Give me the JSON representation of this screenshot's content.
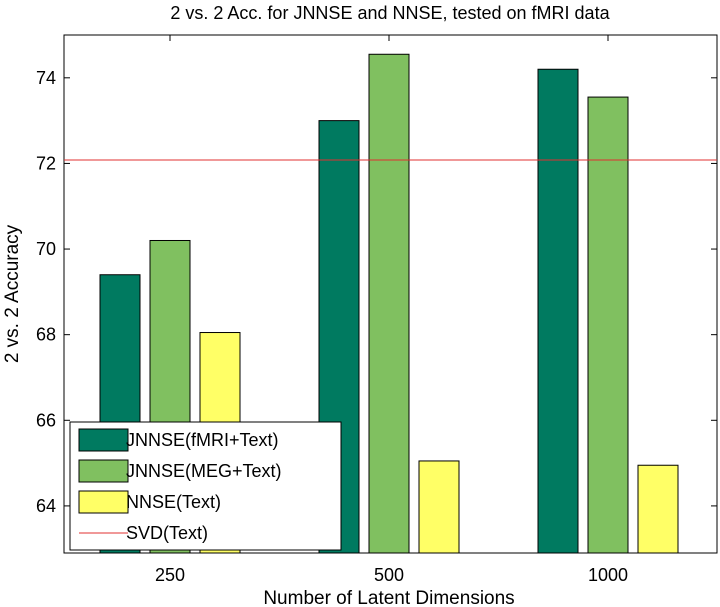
{
  "chart_data": {
    "type": "bar",
    "title": "2 vs. 2 Acc. for JNNSE and NNSE, tested on fMRI data",
    "xlabel": "Number of Latent Dimensions",
    "ylabel": "2 vs. 2 Accuracy",
    "categories": [
      "250",
      "500",
      "1000"
    ],
    "ylim": [
      62.9,
      75.0
    ],
    "yticks": [
      64,
      66,
      68,
      70,
      72,
      74
    ],
    "grid": false,
    "legend_position": "bottom-left",
    "series": [
      {
        "name": "JNNSE(fMRI+Text)",
        "color": "#007a60",
        "values": [
          69.4,
          73.0,
          74.2
        ]
      },
      {
        "name": "JNNSE(MEG+Text)",
        "color": "#80c060",
        "values": [
          70.2,
          74.55,
          73.55
        ]
      },
      {
        "name": "NNSE(Text)",
        "color": "#ffff66",
        "values": [
          68.05,
          65.05,
          64.95
        ]
      }
    ],
    "reference_line": {
      "name": "SVD(Text)",
      "color": "#e03030",
      "value": 72.08
    }
  }
}
